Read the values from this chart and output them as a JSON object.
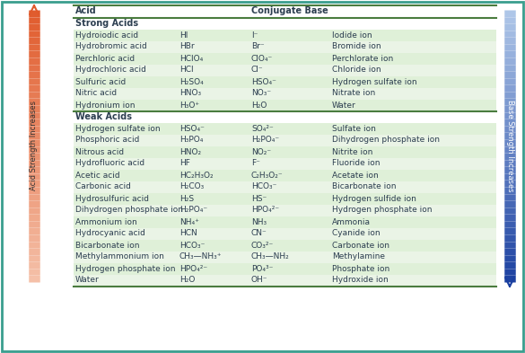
{
  "section_strong": "Strong Acids",
  "section_weak": "Weak Acids",
  "strong_rows": [
    [
      "Hydroiodic acid",
      "HI",
      "I⁻",
      "Iodide ion"
    ],
    [
      "Hydrobromic acid",
      "HBr",
      "Br⁻",
      "Bromide ion"
    ],
    [
      "Perchloric acid",
      "HClO₄",
      "ClO₄⁻",
      "Perchlorate ion"
    ],
    [
      "Hydrochloric acid",
      "HCl",
      "Cl⁻",
      "Chloride ion"
    ],
    [
      "Sulfuric acid",
      "H₂SO₄",
      "HSO₄⁻",
      "Hydrogen sulfate ion"
    ],
    [
      "Nitric acid",
      "HNO₃",
      "NO₃⁻",
      "Nitrate ion"
    ],
    [
      "Hydronium ion",
      "H₃O⁺",
      "H₂O",
      "Water"
    ]
  ],
  "weak_rows": [
    [
      "Hydrogen sulfate ion",
      "HSO₄⁻",
      "SO₄²⁻",
      "Sulfate ion"
    ],
    [
      "Phosphoric acid",
      "H₃PO₄",
      "H₂PO₄⁻",
      "Dihydrogen phosphate ion"
    ],
    [
      "Nitrous acid",
      "HNO₂",
      "NO₂⁻",
      "Nitrite ion"
    ],
    [
      "Hydrofluoric acid",
      "HF",
      "F⁻",
      "Fluoride ion"
    ],
    [
      "Acetic acid",
      "HC₂H₃O₂",
      "C₂H₃O₂⁻",
      "Acetate ion"
    ],
    [
      "Carbonic acid",
      "H₂CO₃",
      "HCO₃⁻",
      "Bicarbonate ion"
    ],
    [
      "Hydrosulfuric acid",
      "H₂S",
      "HS⁻",
      "Hydrogen sulfide ion"
    ],
    [
      "Dihydrogen phosphate ion",
      "H₂PO₄⁻",
      "HPO₄²⁻",
      "Hydrogen phosphate ion"
    ],
    [
      "Ammonium ion",
      "NH₄⁺",
      "NH₃",
      "Ammonia"
    ],
    [
      "Hydrocyanic acid",
      "HCN",
      "CN⁻",
      "Cyanide ion"
    ],
    [
      "Bicarbonate ion",
      "HCO₃⁻",
      "CO₃²⁻",
      "Carbonate ion"
    ],
    [
      "Methylammonium ion",
      "CH₃—NH₃⁺",
      "CH₃—NH₂",
      "Methylamine"
    ],
    [
      "Hydrogen phosphate ion",
      "HPO₄²⁻",
      "PO₄³⁻",
      "Phosphate ion"
    ],
    [
      "Water",
      "H₂O",
      "OH⁻",
      "Hydroxide ion"
    ]
  ],
  "row_colors": [
    "#dff0d8",
    "#eaf4e6"
  ],
  "border_color": "#4a7c3f",
  "text_color": "#2c3e50",
  "acid_arrow_top_color": "#e05a2b",
  "acid_arrow_bottom_color": "#f5c0a8",
  "base_arrow_top_color": "#1a3fa0",
  "base_arrow_bottom_color": "#aac5e8",
  "outer_border_color": "#3a9e8e"
}
